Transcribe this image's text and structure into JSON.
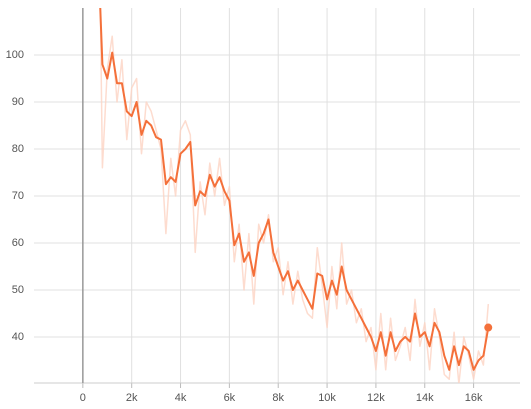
{
  "chart_data": {
    "type": "line",
    "x": [
      700,
      800,
      1000,
      1200,
      1400,
      1600,
      1800,
      2000,
      2200,
      2400,
      2600,
      2800,
      3000,
      3200,
      3400,
      3600,
      3800,
      4000,
      4200,
      4400,
      4600,
      4800,
      5000,
      5200,
      5400,
      5600,
      5800,
      6000,
      6200,
      6400,
      6600,
      6800,
      7000,
      7200,
      7400,
      7600,
      7800,
      8000,
      8200,
      8400,
      8600,
      8800,
      9000,
      9200,
      9400,
      9600,
      9800,
      10000,
      10200,
      10400,
      10600,
      10800,
      11000,
      11200,
      11400,
      11600,
      11800,
      12000,
      12200,
      12400,
      12600,
      12800,
      13000,
      13200,
      13400,
      13600,
      13800,
      14000,
      14200,
      14400,
      14600,
      14800,
      15000,
      15200,
      15400,
      15600,
      15800,
      16000,
      16200,
      16400,
      16600
    ],
    "series": [
      {
        "color": "#fcd3c3",
        "values": [
          118,
          76,
          97,
          104,
          90,
          99,
          82,
          93,
          95,
          79,
          90,
          88,
          84,
          80,
          62,
          78,
          70,
          84,
          86,
          83,
          58,
          73,
          66,
          77,
          70,
          78,
          68,
          72,
          56,
          64,
          50,
          62,
          47,
          64,
          60,
          66,
          56,
          59,
          49,
          56,
          47,
          54,
          48,
          45,
          44,
          59,
          51,
          42,
          55,
          46,
          60,
          47,
          50,
          43,
          46,
          39,
          42,
          33,
          45,
          33,
          44,
          35,
          38,
          42,
          35,
          48,
          38,
          43,
          33,
          46,
          40,
          32,
          31,
          41,
          30,
          40,
          36,
          31,
          37,
          34,
          47
        ]
      },
      {
        "color": "#f4703a",
        "values": [
          112,
          98,
          95,
          100.5,
          94,
          94,
          88,
          87,
          90,
          83,
          86,
          85,
          82.5,
          82,
          72.5,
          74,
          73,
          79,
          80,
          81.5,
          68,
          71,
          70,
          74.5,
          72,
          74,
          71,
          69,
          59.5,
          62,
          56,
          58,
          53,
          60,
          62,
          65,
          58,
          55,
          52,
          54,
          50,
          52,
          50,
          48,
          46,
          53.5,
          53,
          48,
          52,
          49,
          55,
          50,
          48,
          46,
          44,
          42,
          40,
          37,
          41,
          36,
          41,
          37,
          39,
          40,
          39,
          45,
          40,
          41,
          38,
          43,
          41,
          36,
          33,
          38,
          34,
          38,
          37,
          33,
          35,
          36,
          42
        ]
      }
    ],
    "xlim": [
      -2000,
      17900
    ],
    "ylim": [
      30.2,
      110
    ],
    "xticks": [
      0,
      {
        "value": 2000,
        "label": "2k"
      },
      {
        "value": 4000,
        "label": "4k"
      },
      {
        "value": 6000,
        "label": "6k"
      },
      {
        "value": 8000,
        "label": "8k"
      },
      {
        "value": 10000,
        "label": "10k"
      },
      {
        "value": 12000,
        "label": "12k"
      },
      {
        "value": 14000,
        "label": "14k"
      },
      {
        "value": 16000,
        "label": "16k"
      }
    ],
    "yticks": [
      40,
      50,
      60,
      70,
      80,
      90,
      100
    ],
    "grid": true
  }
}
